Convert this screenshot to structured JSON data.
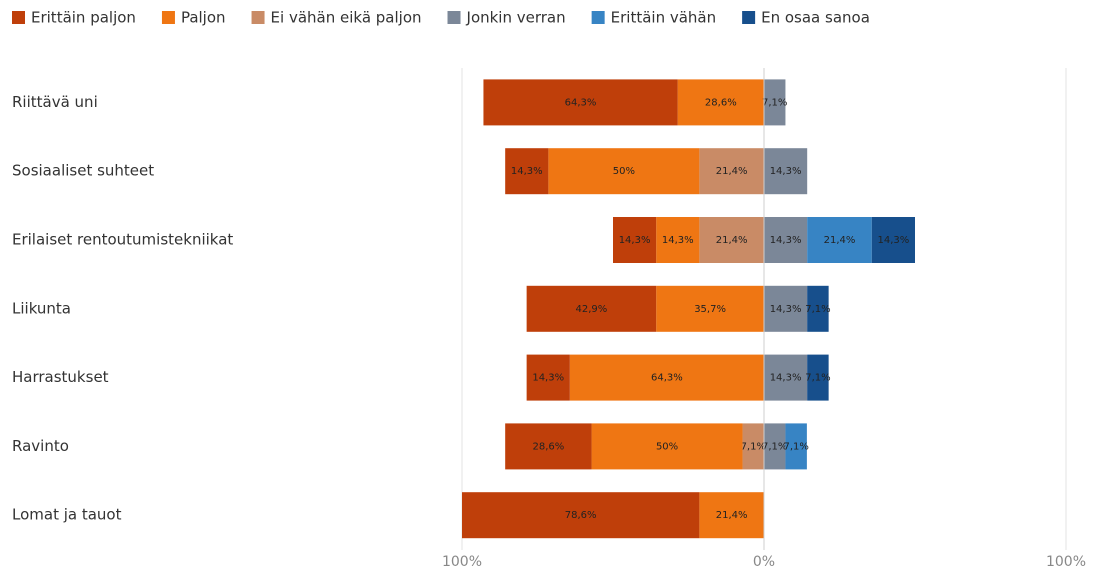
{
  "chart_data": {
    "type": "diverging_bar",
    "categories": [
      "Riittävä uni",
      "Sosiaaliset suhteet",
      "Erilaiset rentoutumistekniikat",
      "Liikunta",
      "Harrastukset",
      "Ravinto",
      "Lomat ja tauot"
    ],
    "series": [
      {
        "name": "Erittäin paljon",
        "color": "#bf3f0a",
        "side": "left",
        "values": [
          64.3,
          14.3,
          14.3,
          42.9,
          14.3,
          28.6,
          78.6
        ],
        "value_labels": [
          "64,3%",
          "14,3%",
          "14,3%",
          "42,9%",
          "14,3%",
          "28,6%",
          "78,6%"
        ]
      },
      {
        "name": "Paljon",
        "color": "#ef7613",
        "side": "left",
        "values": [
          28.6,
          50,
          14.3,
          35.7,
          64.3,
          50,
          21.4
        ],
        "value_labels": [
          "28,6%",
          "50%",
          "14,3%",
          "35,7%",
          "64,3%",
          "50%",
          "21,4%"
        ]
      },
      {
        "name": "Ei vähän eikä paljon",
        "color": "#c98b66",
        "side": "left",
        "values": [
          null,
          21.4,
          21.4,
          null,
          null,
          7.1,
          null
        ],
        "value_labels": [
          null,
          "21,4%",
          "21,4%",
          null,
          null,
          "7,1%",
          null
        ]
      },
      {
        "name": "Jonkin verran",
        "color": "#7b8798",
        "side": "right",
        "values": [
          7.1,
          14.3,
          14.3,
          14.3,
          14.3,
          7.1,
          null
        ],
        "value_labels": [
          "7,1%",
          "14,3%",
          "14,3%",
          "14,3%",
          "14,3%",
          "7,1%",
          null
        ]
      },
      {
        "name": "Erittäin vähän",
        "color": "#3784c4",
        "side": "right",
        "values": [
          null,
          null,
          21.4,
          null,
          null,
          7.1,
          null
        ],
        "value_labels": [
          null,
          null,
          "21,4%",
          null,
          null,
          "7,1%",
          null
        ]
      },
      {
        "name": "En osaa sanoa",
        "color": "#174f8c",
        "side": "right",
        "values": [
          null,
          null,
          14.3,
          7.1,
          7.1,
          null,
          null
        ],
        "value_labels": [
          null,
          null,
          "14,3%",
          "7,1%",
          "7,1%",
          null,
          null
        ]
      }
    ],
    "xlim": [
      -100,
      100
    ],
    "xticks": [
      {
        "value": -100,
        "label": "100%"
      },
      {
        "value": 0,
        "label": "0%"
      },
      {
        "value": 100,
        "label": "100%"
      }
    ],
    "grid": true,
    "legend": "top"
  }
}
